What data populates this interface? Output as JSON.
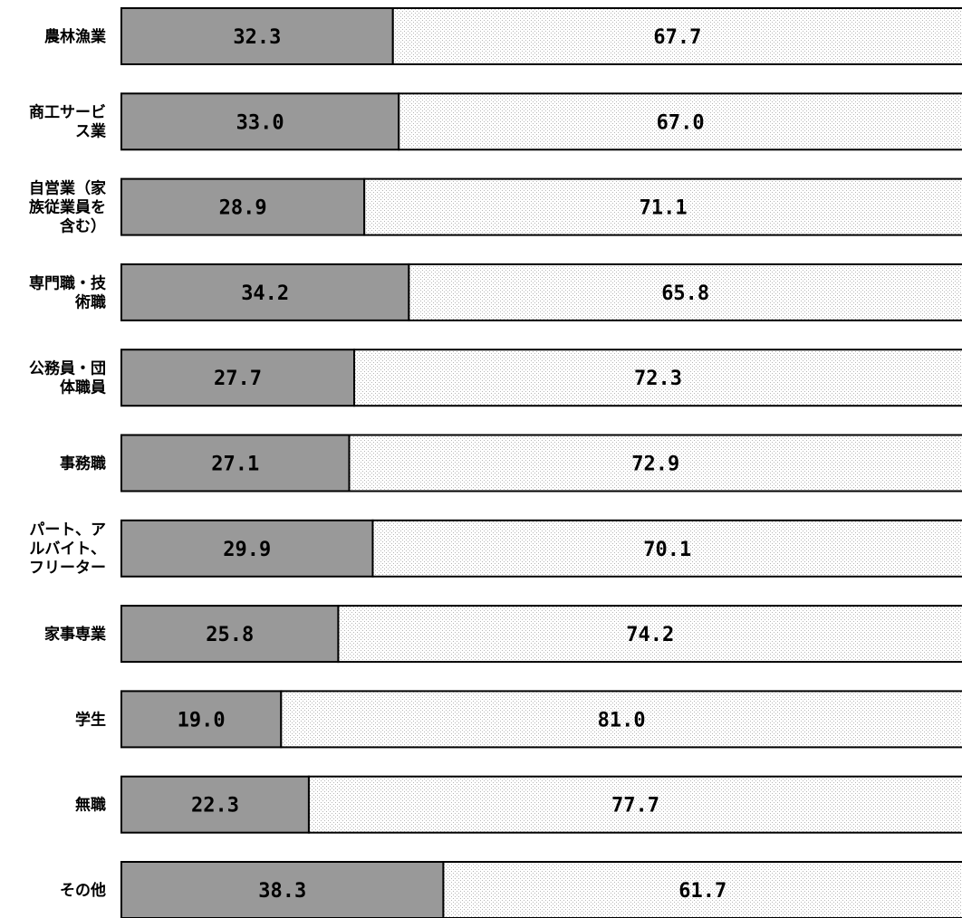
{
  "chart_data": {
    "type": "bar",
    "orientation": "horizontal",
    "stacked": true,
    "percent_stacked": true,
    "categories": [
      "農林漁業",
      "商工サービス業",
      "自営業（家族従業員を含む）",
      "専門職・技術職",
      "公務員・団体職員",
      "事務職",
      "パート、アルバイト、フリーター",
      "家事専業",
      "学生",
      "無職",
      "その他"
    ],
    "category_label_lines": [
      [
        "農林漁業"
      ],
      [
        "商工サービ",
        "ス業"
      ],
      [
        "自営業（家",
        "族従業員を",
        "含む）"
      ],
      [
        "専門職・技",
        "術職"
      ],
      [
        "公務員・団",
        "体職員"
      ],
      [
        "事務職"
      ],
      [
        "パート、ア",
        "ルバイト、",
        "フリーター"
      ],
      [
        "家事専業"
      ],
      [
        "学生"
      ],
      [
        "無職"
      ],
      [
        "その他"
      ]
    ],
    "series": [
      {
        "values": [
          32.3,
          33.0,
          28.9,
          34.2,
          27.7,
          27.1,
          29.9,
          25.8,
          19.0,
          22.3,
          38.3
        ],
        "labels": [
          "32.3",
          "33.0",
          "28.9",
          "34.2",
          "27.7",
          "27.1",
          "29.9",
          "25.8",
          "19.0",
          "22.3",
          "38.3"
        ],
        "color": "#999999",
        "pattern": "solid"
      },
      {
        "values": [
          67.7,
          67.0,
          71.1,
          65.8,
          72.3,
          72.9,
          70.1,
          74.2,
          81.0,
          77.7,
          61.7
        ],
        "labels": [
          "67.7",
          "67.0",
          "71.1",
          "65.8",
          "72.3",
          "72.9",
          "70.1",
          "74.2",
          "81.0",
          "77.7",
          "61.7"
        ],
        "color": "#ffffff",
        "pattern": "dotted"
      }
    ],
    "xlim": [
      0,
      100
    ],
    "title": "",
    "xlabel": "",
    "ylabel": "",
    "legend": "none",
    "grid": false
  }
}
